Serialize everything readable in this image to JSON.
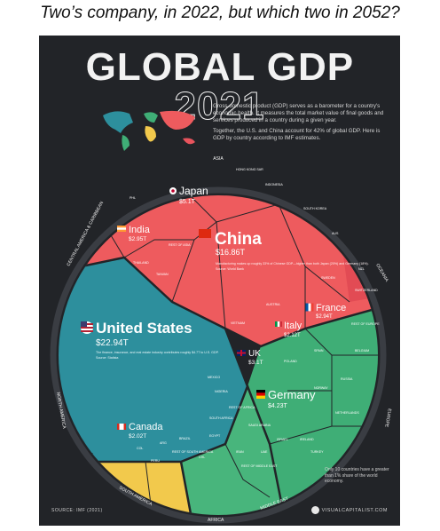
{
  "caption": "Two’s company, in 2022, but which two in 2052?",
  "header": {
    "title_main": "GLOBAL GDP",
    "title_year": "2021",
    "intro_1": "Gross domestic product (GDP) serves as a barometer for a country's economic health. It measures the total market value of final goods and services produced in a country during a given year.",
    "intro_2": "Together, the U.S. and China account for 42% of global GDP. Here is GDP by country according to IMF estimates."
  },
  "regions": {
    "asia": "ASIA",
    "oceania": "OCEANIA",
    "europe": "EUROPE",
    "north_america": "NORTH AMERICA",
    "central_america": "CENTRAL AMERICA & CARIBBEAN",
    "south_america": "SOUTH AMERICA",
    "africa": "AFRICA",
    "middle_east": "MIDDLE EAST"
  },
  "countries": {
    "china": {
      "name": "China",
      "value": "$16.86T",
      "note": "Manufacturing makes up roughly 33% of Chinese GDP—higher than both Japan (20%) and Germany (18%).",
      "source": "Source: World Bank"
    },
    "us": {
      "name": "United States",
      "value": "$22.94T",
      "note": "The finance, insurance, and real estate industry contributes roughly $4.7T to U.S. GDP.",
      "source": "Source: Statista"
    },
    "japan": {
      "name": "Japan",
      "value": "$5.1T"
    },
    "india": {
      "name": "India",
      "value": "$2.95T"
    },
    "germany": {
      "name": "Germany",
      "value": "$4.23T"
    },
    "uk": {
      "name": "UK",
      "value": "$3.1T"
    },
    "france": {
      "name": "France",
      "value": "$2.94T"
    },
    "italy": {
      "name": "Italy",
      "value": "$2.12T"
    },
    "canada": {
      "name": "Canada",
      "value": "$2.02T"
    }
  },
  "small_labels": {
    "hong_kong": "HONG KONG SAR",
    "indonesia": "INDONESIA",
    "south_korea": "SOUTH KOREA",
    "rest_of_asia": "REST OF ASIA",
    "thailand": "THAILAND",
    "taiwan": "TAIWAN",
    "vietnam": "VIETNAM",
    "philippines": "PHL",
    "australia": "AUS",
    "new_zealand": "NZL",
    "sweden": "SWEDEN",
    "switzerland": "SWITZERLAND",
    "rest_of_europe": "REST OF EUROPE",
    "netherlands": "NETHERLANDS",
    "spain": "SPAIN",
    "poland": "POLAND",
    "russia": "RUSSIA",
    "norway": "NORWAY",
    "belgium": "BELGIUM",
    "austria": "AUSTRIA",
    "ireland": "IRELAND",
    "turkey": "TURKEY",
    "mexico": "MEXICO",
    "brazil": "BRAZIL",
    "argentina": "ARG",
    "chile": "CHL",
    "peru": "PERU",
    "colombia": "COL",
    "rest_of_south_america": "REST OF SOUTH AMERICA",
    "nigeria": "NIGERIA",
    "egypt": "EGYPT",
    "south_africa": "SOUTH AFRICA",
    "rest_of_africa": "REST OF AFRICA",
    "saudi_arabia": "SAUDI ARABIA",
    "iran": "IRAN",
    "israel": "ISRAEL",
    "uae": "UAE",
    "rest_of_middle_east": "REST OF MIDDLE EAST"
  },
  "footer": {
    "source": "SOURCE: IMF (2021)",
    "note": "Only 10 countries have a greater than 1% share of the world economy.",
    "brand": "VISUALCAPITALIST.COM"
  },
  "colors": {
    "background": "#222428",
    "asia": "#ee5b5e",
    "north_america": "#2d8f9d",
    "europe": "#3fae76",
    "oceania": "#e8545d"
  }
}
